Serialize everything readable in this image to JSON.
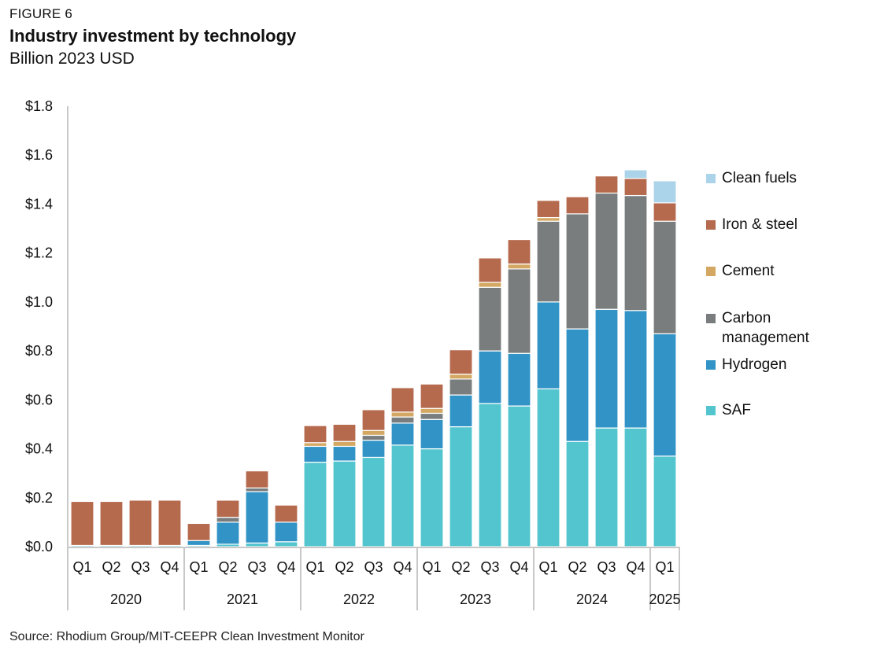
{
  "figure_label": "FIGURE 6",
  "chart_data": {
    "type": "bar",
    "stacked": true,
    "title": "Industry investment by technology",
    "subtitle": "Billion 2023 USD",
    "xlabel": "",
    "ylabel": "",
    "ylim": [
      0,
      1.8
    ],
    "yticks": [
      0,
      0.2,
      0.4,
      0.6,
      0.8,
      1.0,
      1.2,
      1.4,
      1.6,
      1.8
    ],
    "ytick_labels": [
      "$0.0",
      "$0.2",
      "$0.4",
      "$0.6",
      "$0.8",
      "$1.0",
      "$1.2",
      "$1.4",
      "$1.6",
      "$1.8"
    ],
    "grid": false,
    "legend_position": "right",
    "categories": [
      "Q1",
      "Q2",
      "Q3",
      "Q4",
      "Q1",
      "Q2",
      "Q3",
      "Q4",
      "Q1",
      "Q2",
      "Q3",
      "Q4",
      "Q1",
      "Q2",
      "Q3",
      "Q4",
      "Q1",
      "Q2",
      "Q3",
      "Q4",
      "Q1"
    ],
    "year_groups": [
      {
        "label": "2020",
        "count": 4
      },
      {
        "label": "2021",
        "count": 4
      },
      {
        "label": "2022",
        "count": 4
      },
      {
        "label": "2023",
        "count": 4
      },
      {
        "label": "2024",
        "count": 4
      },
      {
        "label": "2025",
        "count": 1
      }
    ],
    "series": [
      {
        "name": "SAF",
        "color": "#53c5cf",
        "values": [
          0.005,
          0.005,
          0.005,
          0.005,
          0.005,
          0.01,
          0.015,
          0.02,
          0.345,
          0.35,
          0.365,
          0.415,
          0.4,
          0.49,
          0.585,
          0.575,
          0.645,
          0.43,
          0.485,
          0.485,
          0.37
        ]
      },
      {
        "name": "Hydrogen",
        "color": "#3193c6",
        "values": [
          0,
          0,
          0,
          0,
          0.02,
          0.09,
          0.21,
          0.08,
          0.065,
          0.06,
          0.07,
          0.09,
          0.12,
          0.13,
          0.215,
          0.215,
          0.355,
          0.46,
          0.485,
          0.48,
          0.5
        ]
      },
      {
        "name": "Carbon management",
        "color": "#797d7e",
        "values": [
          0,
          0,
          0,
          0,
          0,
          0.02,
          0.015,
          0,
          0,
          0,
          0.02,
          0.025,
          0.025,
          0.065,
          0.26,
          0.345,
          0.33,
          0.47,
          0.475,
          0.47,
          0.46
        ]
      },
      {
        "name": "Cement",
        "color": "#d4a862",
        "values": [
          0,
          0,
          0,
          0,
          0,
          0,
          0,
          0,
          0.015,
          0.02,
          0.02,
          0.02,
          0.02,
          0.02,
          0.02,
          0.02,
          0.015,
          0,
          0,
          0,
          0
        ]
      },
      {
        "name": "Iron & steel",
        "color": "#b5694d",
        "values": [
          0.18,
          0.18,
          0.185,
          0.185,
          0.07,
          0.07,
          0.07,
          0.07,
          0.07,
          0.07,
          0.085,
          0.1,
          0.1,
          0.1,
          0.1,
          0.1,
          0.07,
          0.07,
          0.07,
          0.07,
          0.075
        ]
      },
      {
        "name": "Clean fuels",
        "color": "#abd4ea",
        "values": [
          0.003,
          0.003,
          0,
          0,
          0,
          0.003,
          0.003,
          0,
          0.003,
          0,
          0.003,
          0.003,
          0.003,
          0.003,
          0.003,
          0,
          0,
          0,
          0,
          0.035,
          0.09
        ]
      }
    ],
    "legend_order": [
      "Clean fuels",
      "Iron & steel",
      "Cement",
      "Carbon management",
      "Hydrogen",
      "SAF"
    ]
  },
  "source": "Source: Rhodium Group/MIT-CEEPR Clean Investment Monitor"
}
